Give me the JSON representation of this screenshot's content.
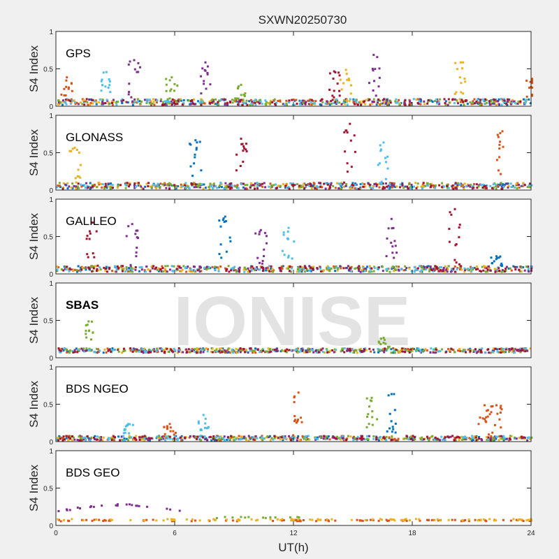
{
  "chart_data": {
    "type": "scatter",
    "title": "SXWN20250730",
    "xlabel": "UT(h)",
    "ylabel": "S4 Index",
    "xlim": [
      0,
      24
    ],
    "ylim": [
      0,
      1
    ],
    "xticks": [
      "0",
      "6",
      "12",
      "18",
      "24"
    ],
    "yticks": [
      "0",
      "0.5",
      "1"
    ],
    "watermark": "IONISE",
    "colors": [
      "#0072bd",
      "#d95319",
      "#edb120",
      "#7e2f8e",
      "#77ac30",
      "#4dbeee",
      "#a2142f"
    ],
    "panels": [
      {
        "label": "GPS",
        "baseline": 0.07,
        "noise": 0.04,
        "spikes": [
          [
            0.5,
            0.4,
            1
          ],
          [
            2.5,
            0.47,
            5
          ],
          [
            3.9,
            0.63,
            3
          ],
          [
            5.8,
            0.4,
            4
          ],
          [
            7.5,
            0.6,
            3
          ],
          [
            9.3,
            0.3,
            4
          ],
          [
            14,
            0.48,
            6
          ],
          [
            14.6,
            0.5,
            2
          ],
          [
            16,
            0.7,
            3
          ],
          [
            20.4,
            0.6,
            2
          ],
          [
            24,
            0.38,
            1
          ]
        ]
      },
      {
        "label": "GLONASS",
        "baseline": 0.07,
        "noise": 0.04,
        "spikes": [
          [
            0.9,
            0.58,
            2
          ],
          [
            7,
            0.68,
            0
          ],
          [
            9.3,
            0.7,
            6
          ],
          [
            14.8,
            0.9,
            6
          ],
          [
            16.5,
            0.65,
            5
          ],
          [
            22.5,
            0.8,
            1
          ]
        ]
      },
      {
        "label": "GALILEO",
        "baseline": 0.08,
        "noise": 0.04,
        "spikes": [
          [
            1.8,
            0.7,
            6
          ],
          [
            3.8,
            0.68,
            3
          ],
          [
            8.5,
            0.78,
            0
          ],
          [
            10.3,
            0.6,
            3
          ],
          [
            11.7,
            0.63,
            5
          ],
          [
            16.9,
            0.75,
            3
          ],
          [
            20.1,
            0.88,
            6
          ],
          [
            22.2,
            0.25,
            0
          ]
        ]
      },
      {
        "label": "SBAS",
        "baseline": 0.11,
        "noise": 0.03,
        "spikes": [
          [
            1.6,
            0.5,
            4
          ],
          [
            16.5,
            0.28,
            4
          ]
        ]
      },
      {
        "label": "BDS NGEO",
        "baseline": 0.06,
        "noise": 0.03,
        "spikes": [
          [
            3.6,
            0.25,
            5
          ],
          [
            5.7,
            0.25,
            1
          ],
          [
            7.4,
            0.37,
            5
          ],
          [
            12.2,
            0.67,
            1
          ],
          [
            15.9,
            0.6,
            4
          ],
          [
            16.9,
            0.65,
            0
          ],
          [
            21.6,
            0.5,
            1
          ],
          [
            22.2,
            0.5,
            1
          ]
        ]
      },
      {
        "label": "BDS GEO",
        "baseline": 0.08,
        "noise": 0.015,
        "spikes": []
      }
    ]
  }
}
